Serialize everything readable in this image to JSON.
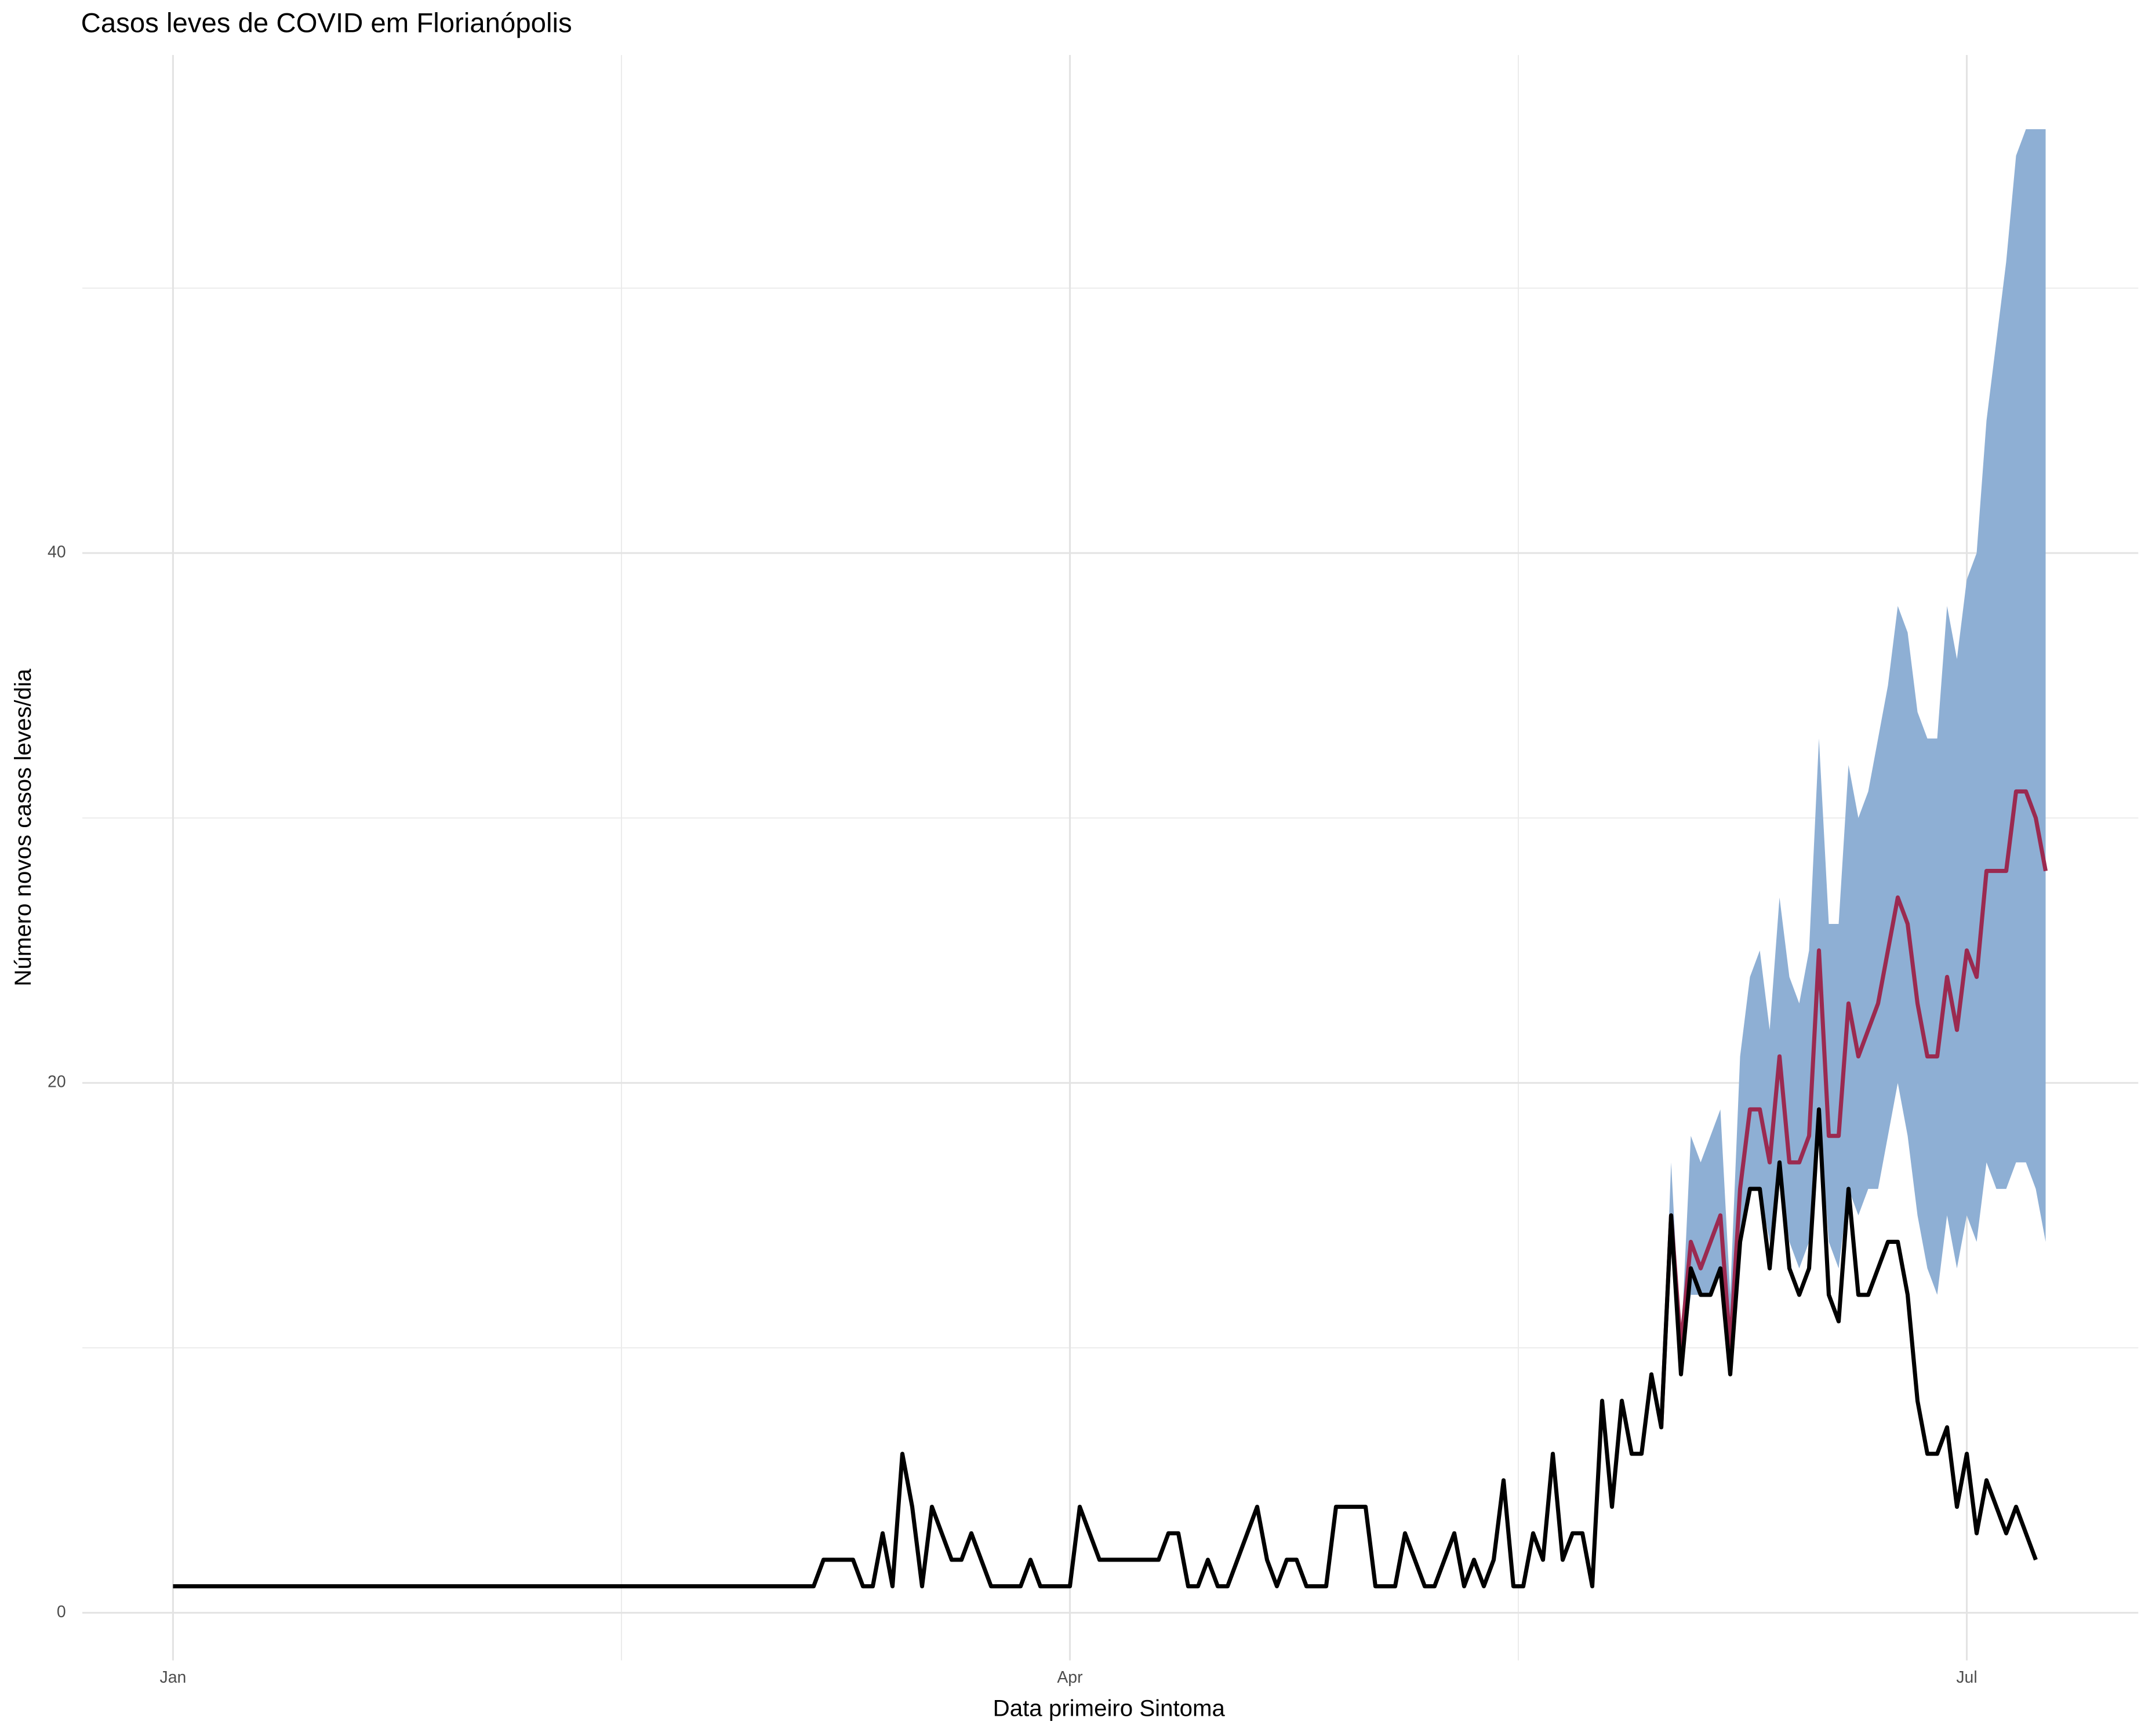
{
  "chart_data": {
    "type": "line",
    "title": "Casos leves de COVID em Florianópolis",
    "x_label": "Data primeiro Sintoma",
    "y_label": "Número novos casos leves/dia",
    "x": [
      0,
      1,
      2,
      3,
      4,
      5,
      6,
      7,
      8,
      9,
      10,
      11,
      12,
      13,
      14,
      15,
      16,
      17,
      18,
      19,
      20,
      21,
      22,
      23,
      24,
      25,
      26,
      27,
      28,
      29,
      30,
      31,
      32,
      33,
      34,
      35,
      36,
      37,
      38,
      39,
      40,
      41,
      42,
      43,
      44,
      45,
      46,
      47,
      48,
      49,
      50,
      51,
      52,
      53,
      54,
      55,
      56,
      57,
      58,
      59,
      60,
      61,
      62,
      63,
      64,
      65,
      66,
      67,
      68,
      69,
      70,
      71,
      72,
      73,
      74,
      75,
      76,
      77,
      78,
      79,
      80,
      81,
      82,
      83,
      84,
      85,
      86,
      87,
      88,
      89,
      90,
      91,
      92,
      93,
      94,
      95,
      96,
      97,
      98,
      99,
      100,
      101,
      102,
      103,
      104,
      105,
      106,
      107,
      108,
      109,
      110,
      111,
      112,
      113,
      114,
      115,
      116,
      117,
      118,
      119,
      120,
      121,
      122,
      123,
      124,
      125,
      126,
      127,
      128,
      129,
      130,
      131,
      132,
      133,
      134,
      135,
      136,
      137,
      138,
      139,
      140,
      141,
      142,
      143,
      144,
      145,
      146,
      147,
      148,
      149,
      150,
      151,
      152,
      153,
      154,
      155,
      156,
      157,
      158,
      159,
      160,
      161,
      162,
      163,
      164,
      165,
      166,
      167,
      168,
      169,
      170,
      171,
      172,
      173,
      174,
      175,
      176,
      177,
      178,
      179,
      180,
      181,
      182,
      183,
      184,
      185,
      186,
      187,
      188,
      189,
      190
    ],
    "band": {
      "color": "#8eafd4",
      "upper": [
        null,
        null,
        null,
        null,
        null,
        null,
        null,
        null,
        null,
        null,
        null,
        null,
        null,
        null,
        null,
        null,
        null,
        null,
        null,
        null,
        null,
        null,
        null,
        null,
        null,
        null,
        null,
        null,
        null,
        null,
        null,
        null,
        null,
        null,
        null,
        null,
        null,
        null,
        null,
        null,
        null,
        null,
        null,
        null,
        null,
        null,
        null,
        null,
        null,
        null,
        null,
        null,
        null,
        null,
        null,
        null,
        null,
        null,
        null,
        null,
        null,
        null,
        null,
        null,
        null,
        null,
        null,
        null,
        null,
        null,
        null,
        null,
        null,
        null,
        null,
        null,
        null,
        null,
        null,
        null,
        null,
        null,
        null,
        null,
        null,
        null,
        null,
        null,
        null,
        null,
        null,
        null,
        null,
        null,
        null,
        null,
        null,
        null,
        null,
        null,
        null,
        null,
        null,
        null,
        null,
        null,
        null,
        null,
        null,
        null,
        null,
        null,
        null,
        null,
        null,
        null,
        null,
        null,
        null,
        null,
        null,
        null,
        null,
        null,
        null,
        null,
        null,
        null,
        null,
        null,
        null,
        null,
        null,
        null,
        null,
        null,
        null,
        null,
        null,
        null,
        null,
        null,
        null,
        null,
        null,
        null,
        null,
        null,
        null,
        null,
        null,
        7,
        17,
        10,
        18,
        17,
        18,
        19,
        12,
        21,
        24,
        25,
        22,
        27,
        24,
        23,
        25,
        33,
        26,
        26,
        32,
        30,
        31,
        33,
        35,
        38,
        37,
        34,
        33,
        33,
        38,
        36,
        39,
        40,
        45,
        48,
        51,
        55,
        56,
        56,
        56
      ],
      "lower": [
        null,
        null,
        null,
        null,
        null,
        null,
        null,
        null,
        null,
        null,
        null,
        null,
        null,
        null,
        null,
        null,
        null,
        null,
        null,
        null,
        null,
        null,
        null,
        null,
        null,
        null,
        null,
        null,
        null,
        null,
        null,
        null,
        null,
        null,
        null,
        null,
        null,
        null,
        null,
        null,
        null,
        null,
        null,
        null,
        null,
        null,
        null,
        null,
        null,
        null,
        null,
        null,
        null,
        null,
        null,
        null,
        null,
        null,
        null,
        null,
        null,
        null,
        null,
        null,
        null,
        null,
        null,
        null,
        null,
        null,
        null,
        null,
        null,
        null,
        null,
        null,
        null,
        null,
        null,
        null,
        null,
        null,
        null,
        null,
        null,
        null,
        null,
        null,
        null,
        null,
        null,
        null,
        null,
        null,
        null,
        null,
        null,
        null,
        null,
        null,
        null,
        null,
        null,
        null,
        null,
        null,
        null,
        null,
        null,
        null,
        null,
        null,
        null,
        null,
        null,
        null,
        null,
        null,
        null,
        null,
        null,
        null,
        null,
        null,
        null,
        null,
        null,
        null,
        null,
        null,
        null,
        null,
        null,
        null,
        null,
        null,
        null,
        null,
        null,
        null,
        null,
        null,
        null,
        null,
        null,
        null,
        null,
        null,
        null,
        null,
        null,
        7,
        14,
        9,
        12,
        12,
        12,
        13,
        9,
        14,
        16,
        16,
        14,
        17,
        14,
        13,
        14,
        19,
        14,
        13,
        16,
        15,
        16,
        16,
        18,
        20,
        18,
        15,
        13,
        12,
        15,
        13,
        15,
        14,
        17,
        16,
        16,
        17,
        17,
        16,
        14
      ]
    },
    "series": [
      {
        "color": "#9b2a50",
        "values": [
          null,
          null,
          null,
          null,
          null,
          null,
          null,
          null,
          null,
          null,
          null,
          null,
          null,
          null,
          null,
          null,
          null,
          null,
          null,
          null,
          null,
          null,
          null,
          null,
          null,
          null,
          null,
          null,
          null,
          null,
          null,
          null,
          null,
          null,
          null,
          null,
          null,
          null,
          null,
          null,
          null,
          null,
          null,
          null,
          null,
          null,
          null,
          null,
          null,
          null,
          null,
          null,
          null,
          null,
          null,
          null,
          null,
          null,
          null,
          null,
          null,
          null,
          null,
          null,
          null,
          null,
          null,
          null,
          null,
          null,
          null,
          null,
          null,
          null,
          null,
          null,
          null,
          null,
          null,
          null,
          null,
          null,
          null,
          null,
          null,
          null,
          null,
          null,
          null,
          null,
          null,
          null,
          null,
          null,
          null,
          null,
          null,
          null,
          null,
          null,
          null,
          null,
          null,
          null,
          null,
          null,
          null,
          null,
          null,
          null,
          null,
          null,
          null,
          null,
          null,
          null,
          null,
          null,
          null,
          null,
          null,
          null,
          null,
          null,
          null,
          null,
          null,
          null,
          null,
          null,
          null,
          null,
          null,
          null,
          null,
          null,
          null,
          null,
          null,
          null,
          null,
          null,
          null,
          null,
          null,
          null,
          null,
          null,
          null,
          null,
          null,
          7,
          15,
          10,
          14,
          13,
          14,
          15,
          10,
          16,
          19,
          19,
          17,
          21,
          17,
          17,
          18,
          25,
          18,
          18,
          23,
          21,
          22,
          23,
          25,
          27,
          26,
          23,
          21,
          21,
          24,
          22,
          25,
          24,
          28,
          28,
          28,
          31,
          31,
          30,
          28
        ]
      },
      {
        "color": "#000000",
        "values": [
          1,
          1,
          1,
          1,
          1,
          1,
          1,
          1,
          1,
          1,
          1,
          1,
          1,
          1,
          1,
          1,
          1,
          1,
          1,
          1,
          1,
          1,
          1,
          1,
          1,
          1,
          1,
          1,
          1,
          1,
          1,
          1,
          1,
          1,
          1,
          1,
          1,
          1,
          1,
          1,
          1,
          1,
          1,
          1,
          1,
          1,
          1,
          1,
          1,
          1,
          1,
          1,
          1,
          1,
          1,
          1,
          1,
          1,
          1,
          1,
          1,
          1,
          1,
          1,
          1,
          1,
          2,
          2,
          2,
          2,
          1,
          1,
          3,
          1,
          6,
          4,
          1,
          4,
          3,
          2,
          2,
          3,
          2,
          1,
          1,
          1,
          1,
          2,
          1,
          1,
          1,
          1,
          4,
          3,
          2,
          2,
          2,
          2,
          2,
          2,
          2,
          3,
          3,
          1,
          1,
          2,
          1,
          1,
          2,
          3,
          4,
          2,
          1,
          2,
          2,
          1,
          1,
          1,
          4,
          4,
          4,
          4,
          1,
          1,
          1,
          3,
          2,
          1,
          1,
          2,
          3,
          1,
          2,
          1,
          2,
          5,
          1,
          1,
          3,
          2,
          6,
          2,
          3,
          3,
          1,
          8,
          4,
          8,
          6,
          6,
          9,
          7,
          15,
          9,
          13,
          12,
          12,
          13,
          9,
          14,
          16,
          16,
          13,
          17,
          13,
          12,
          13,
          19,
          12,
          11,
          16,
          12,
          12,
          13,
          14,
          14,
          12,
          8,
          6,
          6,
          7,
          4,
          6,
          3,
          5,
          4,
          3,
          4,
          3,
          2,
          null
        ]
      }
    ],
    "xlim": [
      -9.2,
      199.4
    ],
    "ylim": [
      -1.8,
      58.8
    ],
    "xticks": [
      {
        "value": 0,
        "label": "Jan"
      },
      {
        "value": 91,
        "label": "Apr"
      },
      {
        "value": 182,
        "label": "Jul"
      }
    ],
    "yticks": [
      0,
      20,
      40
    ],
    "grid": true
  }
}
